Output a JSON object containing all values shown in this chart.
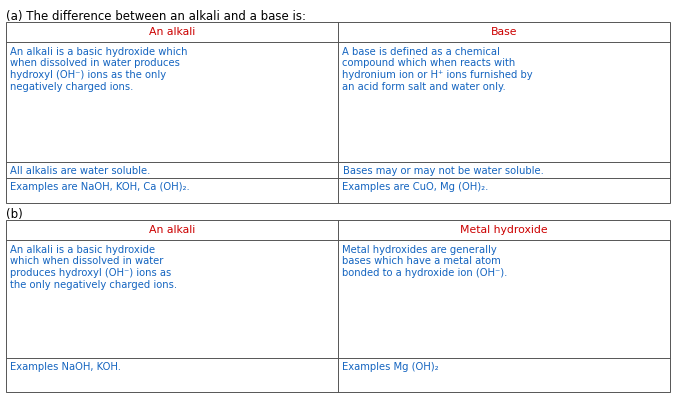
{
  "white": "#ffffff",
  "black": "#000000",
  "red_color": "#cc0000",
  "blue_color": "#1565c0",
  "border_color": "#555555",
  "title_a": "(a) The difference between an alkali and a base is:",
  "title_b": "(b)",
  "table_a": {
    "headers": [
      "An alkali",
      "Base"
    ],
    "row1_col1": [
      "An alkali is a basic hydroxide which",
      "when dissolved in water produces",
      "hydroxyl (OH⁻) ions as the only",
      "negatively charged ions."
    ],
    "row1_col2": [
      "A base is defined as a chemical",
      "compound which when reacts with",
      "hydronium ion or H⁺ ions furnished by",
      "an acid form salt and water only."
    ],
    "row2_col1": "All alkalis are water soluble.",
    "row2_col2": "Bases may or may not be water soluble.",
    "row3_col1": "Examples are NaOH, KOH, Ca (OH)₂.",
    "row3_col2": "Examples are CuO, Mg (OH)₂."
  },
  "table_b": {
    "headers": [
      "An alkali",
      "Metal hydroxide"
    ],
    "row1_col1": [
      "An alkali is a basic hydroxide",
      "which when dissolved in water",
      "produces hydroxyl (OH⁻) ions as",
      "the only negatively charged ions."
    ],
    "row1_col2": [
      "Metal hydroxides are generally",
      "bases which have a metal atom",
      "bonded to a hydroxide ion (OH⁻)."
    ],
    "row2_col1": "Examples NaOH, KOH.",
    "row2_col2": "Examples Mg (OH)₂"
  }
}
